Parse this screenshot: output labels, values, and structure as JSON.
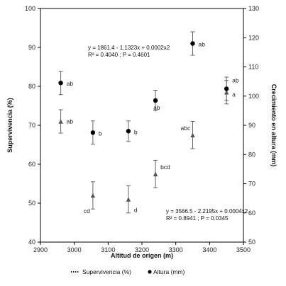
{
  "chart_data": {
    "type": "scatter",
    "xlabel": "Altitud de origen (m)",
    "ylabel": "Supervivencia (%)",
    "y2label": "Crecimiento en altura (mm)",
    "xlim": [
      2900,
      3500
    ],
    "ylim": [
      40,
      100
    ],
    "y2lim": [
      50,
      130
    ],
    "xticks": [
      "2900",
      "3000",
      "3100",
      "3200",
      "3300",
      "3400",
      "3500"
    ],
    "yticks": [
      "40",
      "50",
      "60",
      "70",
      "80",
      "90",
      "100"
    ],
    "y2ticks": [
      "50",
      "60",
      "70",
      "80",
      "90",
      "100",
      "110",
      "120",
      "130"
    ],
    "grid": false,
    "legend_position": "bottom",
    "series": [
      {
        "name": "Supervivencia (%)",
        "axis": "left",
        "marker": "triangle",
        "x": [
          2960,
          3055,
          3160,
          3240,
          3350,
          3450
        ],
        "y": [
          71.0,
          52.0,
          51.0,
          57.5,
          67.5,
          78.5
        ],
        "err": [
          3.0,
          3.5,
          3.5,
          3.5,
          3.5,
          3.0
        ],
        "labels": [
          "ab",
          "cd",
          "d",
          "bcd",
          "abc",
          "a"
        ]
      },
      {
        "name": "Altura (mm)",
        "axis": "right",
        "marker": "circle",
        "x": [
          2960,
          3055,
          3160,
          3240,
          3350,
          3450
        ],
        "y": [
          104.5,
          87.5,
          88.0,
          98.5,
          118.0,
          102.5
        ],
        "err": [
          4.0,
          4.0,
          3.5,
          3.5,
          4.0,
          4.0
        ],
        "labels": [
          "ab",
          "b",
          "b",
          "ab",
          "ab",
          "ab"
        ]
      }
    ],
    "trendlines": [
      {
        "series": "Supervivencia (%)",
        "axis": "left",
        "style": "dash-dot",
        "x_from": 2960,
        "x_to": 3450,
        "a": 3566.5,
        "b": -2.2195,
        "c": 0.0004
      },
      {
        "series": "Altura (mm)",
        "axis": "right",
        "style": "dotted",
        "x_from": 2960,
        "x_to": 3450,
        "a": 1861.4,
        "b": -1.1323,
        "c": 0.0002
      }
    ],
    "equations": {
      "altura_line1": "y = 1861.4 - 1.1323x + 0.0002x2",
      "altura_line2": "R² = 0.4040 ; P = 0.4601",
      "superv_line1": "y = 3566.5 - 2.2195x + 0.0004x2",
      "superv_line2": "R² = 0.8941 ; P = 0.0345"
    }
  }
}
